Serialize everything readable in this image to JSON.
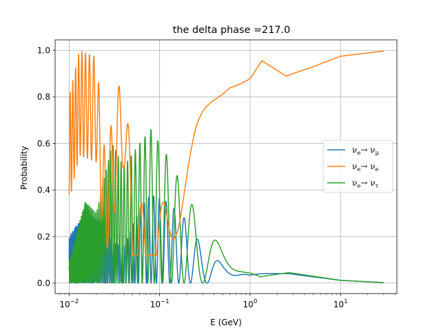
{
  "chart_data": {
    "type": "line",
    "title": "the delta phase =217.0",
    "xlabel": "E (GeV)",
    "ylabel": "Probability",
    "xscale": "log",
    "xlim": [
      0.007,
      42
    ],
    "ylim": [
      -0.045,
      1.045
    ],
    "grid": true,
    "legend_position": "right",
    "x_tick_values": [
      0.01,
      0.1,
      1,
      10
    ],
    "x_tick_labels": [
      {
        "base": "10",
        "exp": "−2"
      },
      {
        "base": "10",
        "exp": "−1"
      },
      {
        "base": "10",
        "exp": "0"
      },
      {
        "base": "10",
        "exp": "1"
      }
    ],
    "y_ticks": [
      0.0,
      0.2,
      0.4,
      0.6,
      0.8,
      1.0
    ],
    "y_tick_labels": [
      "0.0",
      "0.2",
      "0.4",
      "0.6",
      "0.8",
      "1.0"
    ],
    "x_range": [
      0.01,
      30
    ],
    "series": [
      {
        "name": "νe→ νμ",
        "legend": {
          "main": "ν",
          "sub1": "e",
          "mid": "→ ν",
          "sub2": "μ"
        },
        "color": "#1f77b4",
        "envelope": [
          [
            0.01,
            0.2
          ],
          [
            0.015,
            0.3
          ],
          [
            0.02,
            0.28
          ],
          [
            0.03,
            0.18
          ],
          [
            0.04,
            0.15
          ],
          [
            0.06,
            0.32
          ],
          [
            0.08,
            0.38
          ],
          [
            0.12,
            0.35
          ],
          [
            0.2,
            0.27
          ],
          [
            0.3,
            0.15
          ],
          [
            0.5,
            0.08
          ],
          [
            0.8,
            0.06
          ],
          [
            1.0,
            0.04
          ],
          [
            2.7,
            0.042
          ],
          [
            10,
            0.012
          ],
          [
            30,
            0.002
          ]
        ]
      },
      {
        "name": "νe→ νe",
        "legend": {
          "main": "ν",
          "sub1": "e",
          "mid": "→ ν",
          "sub2": "e"
        },
        "color": "#ff7f0e",
        "envelope": [
          [
            0.01,
            0.8
          ],
          [
            0.013,
            1.0
          ],
          [
            0.02,
            0.97
          ],
          [
            0.025,
            0.55
          ],
          [
            0.04,
            0.95
          ],
          [
            0.05,
            0.45
          ],
          [
            0.07,
            0.3
          ],
          [
            0.1,
            0.3
          ],
          [
            0.15,
            0.55
          ],
          [
            0.25,
            0.7
          ],
          [
            0.4,
            0.8
          ],
          [
            0.6,
            0.88
          ],
          [
            1.0,
            0.92
          ],
          [
            1.35,
            0.99
          ],
          [
            2.5,
            0.91
          ],
          [
            5,
            0.94
          ],
          [
            10,
            0.98
          ],
          [
            30,
            0.998
          ]
        ]
      },
      {
        "name": "νe→ ντ",
        "legend": {
          "main": "ν",
          "sub1": "e",
          "mid": "→ ν",
          "sub2": "τ"
        },
        "color": "#2ca02c",
        "envelope": [
          [
            0.01,
            0.08
          ],
          [
            0.015,
            0.35
          ],
          [
            0.02,
            0.3
          ],
          [
            0.03,
            0.6
          ],
          [
            0.04,
            0.5
          ],
          [
            0.06,
            0.6
          ],
          [
            0.08,
            0.66
          ],
          [
            0.12,
            0.55
          ],
          [
            0.2,
            0.38
          ],
          [
            0.3,
            0.25
          ],
          [
            0.5,
            0.15
          ],
          [
            0.9,
            0.07
          ],
          [
            1.3,
            0.03
          ],
          [
            2.7,
            0.045
          ],
          [
            10,
            0.012
          ],
          [
            30,
            0.002
          ]
        ]
      }
    ]
  }
}
